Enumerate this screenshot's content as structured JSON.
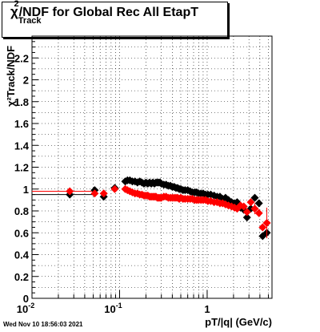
{
  "title": {
    "symbol": "χ",
    "superscript": "2",
    "subscript": "Track",
    "text": "/NDF for Global Rec All EtapT"
  },
  "timestamp": "Wed Nov 10 18:56:03 2021",
  "chart_data": {
    "type": "scatter",
    "title": "χ²Track/NDF for Global Rec All EtapT",
    "xlabel": "pT/|q| (GeV/c)",
    "ylabel": "χ²Track/NDF",
    "xscale": "log",
    "xlim": [
      0.01,
      5.5
    ],
    "ylim": [
      0,
      2.4
    ],
    "grid": true,
    "x_tick_labels": [
      "10^-2",
      "10^-1",
      "1"
    ],
    "y_tick_labels": [
      "0",
      "0.2",
      "0.4",
      "0.6",
      "0.8",
      "1",
      "1.2",
      "1.4",
      "1.6",
      "1.8",
      "2",
      "2.2"
    ],
    "series": [
      {
        "color": "#000000",
        "marker": "diamond",
        "points": [
          [
            0.027,
            0.95
          ],
          [
            0.052,
            0.99
          ],
          [
            0.066,
            0.93
          ],
          [
            0.088,
            1.01
          ],
          [
            0.116,
            1.07
          ],
          [
            0.123,
            1.08
          ],
          [
            0.131,
            1.08
          ],
          [
            0.14,
            1.07
          ],
          [
            0.15,
            1.07
          ],
          [
            0.16,
            1.06
          ],
          [
            0.17,
            1.07
          ],
          [
            0.18,
            1.06
          ],
          [
            0.19,
            1.05
          ],
          [
            0.2,
            1.06
          ],
          [
            0.21,
            1.05
          ],
          [
            0.22,
            1.06
          ],
          [
            0.23,
            1.05
          ],
          [
            0.24,
            1.06
          ],
          [
            0.25,
            1.05
          ],
          [
            0.26,
            1.06
          ],
          [
            0.27,
            1.06
          ],
          [
            0.28,
            1.06
          ],
          [
            0.29,
            1.06
          ],
          [
            0.3,
            1.05
          ],
          [
            0.32,
            1.04
          ],
          [
            0.34,
            1.04
          ],
          [
            0.36,
            1.03
          ],
          [
            0.38,
            1.03
          ],
          [
            0.4,
            1.02
          ],
          [
            0.42,
            1.02
          ],
          [
            0.44,
            1.01
          ],
          [
            0.46,
            1.01
          ],
          [
            0.48,
            1.0
          ],
          [
            0.5,
            1.0
          ],
          [
            0.53,
            0.99
          ],
          [
            0.56,
            0.99
          ],
          [
            0.6,
            0.99
          ],
          [
            0.64,
            0.98
          ],
          [
            0.68,
            0.97
          ],
          [
            0.72,
            0.97
          ],
          [
            0.76,
            0.97
          ],
          [
            0.8,
            0.96
          ],
          [
            0.85,
            0.96
          ],
          [
            0.9,
            0.96
          ],
          [
            0.96,
            0.95
          ],
          [
            1.02,
            0.95
          ],
          [
            1.1,
            0.95
          ],
          [
            1.2,
            0.94
          ],
          [
            1.3,
            0.93
          ],
          [
            1.4,
            0.93
          ],
          [
            1.5,
            0.91
          ],
          [
            1.62,
            0.92
          ],
          [
            1.75,
            0.9
          ],
          [
            1.9,
            0.88
          ],
          [
            2.05,
            0.87
          ],
          [
            2.2,
            0.88
          ],
          [
            2.4,
            0.83
          ],
          [
            2.62,
            0.81
          ],
          [
            2.85,
            0.74
          ],
          [
            3.15,
            0.82
          ],
          [
            3.5,
            0.92
          ],
          [
            3.9,
            0.87
          ],
          [
            4.3,
            0.57
          ],
          [
            4.8,
            0.6
          ]
        ]
      },
      {
        "color": "#ff0000",
        "marker": "diamond",
        "points": [
          [
            0.027,
            0.98
          ],
          [
            0.052,
            0.96
          ],
          [
            0.066,
            0.96
          ],
          [
            0.088,
            1.0
          ],
          [
            0.116,
            1.0
          ],
          [
            0.123,
            0.99
          ],
          [
            0.131,
            0.98
          ],
          [
            0.14,
            0.97
          ],
          [
            0.15,
            0.96
          ],
          [
            0.16,
            0.96
          ],
          [
            0.17,
            0.95
          ],
          [
            0.18,
            0.95
          ],
          [
            0.19,
            0.94
          ],
          [
            0.2,
            0.94
          ],
          [
            0.21,
            0.94
          ],
          [
            0.22,
            0.93
          ],
          [
            0.23,
            0.93
          ],
          [
            0.24,
            0.93
          ],
          [
            0.25,
            0.93
          ],
          [
            0.26,
            0.93
          ],
          [
            0.27,
            0.92
          ],
          [
            0.28,
            0.92
          ],
          [
            0.29,
            0.92
          ],
          [
            0.3,
            0.92
          ],
          [
            0.32,
            0.93
          ],
          [
            0.34,
            0.93
          ],
          [
            0.36,
            0.92
          ],
          [
            0.38,
            0.92
          ],
          [
            0.4,
            0.92
          ],
          [
            0.42,
            0.92
          ],
          [
            0.44,
            0.92
          ],
          [
            0.46,
            0.92
          ],
          [
            0.48,
            0.91
          ],
          [
            0.5,
            0.92
          ],
          [
            0.53,
            0.91
          ],
          [
            0.56,
            0.91
          ],
          [
            0.6,
            0.91
          ],
          [
            0.64,
            0.91
          ],
          [
            0.68,
            0.91
          ],
          [
            0.72,
            0.9
          ],
          [
            0.76,
            0.9
          ],
          [
            0.8,
            0.9
          ],
          [
            0.85,
            0.9
          ],
          [
            0.9,
            0.9
          ],
          [
            0.96,
            0.9
          ],
          [
            1.02,
            0.89
          ],
          [
            1.1,
            0.89
          ],
          [
            1.2,
            0.88
          ],
          [
            1.3,
            0.88
          ],
          [
            1.4,
            0.87
          ],
          [
            1.5,
            0.87
          ],
          [
            1.62,
            0.86
          ],
          [
            1.75,
            0.85
          ],
          [
            1.9,
            0.84
          ],
          [
            2.05,
            0.83
          ],
          [
            2.2,
            0.82
          ],
          [
            2.4,
            0.85
          ],
          [
            2.62,
            0.84
          ],
          [
            2.85,
            0.79
          ],
          [
            3.15,
            0.88
          ],
          [
            3.5,
            0.82
          ],
          [
            3.9,
            0.78
          ],
          [
            4.3,
            0.65
          ],
          [
            4.8,
            0.69
          ]
        ]
      }
    ]
  }
}
